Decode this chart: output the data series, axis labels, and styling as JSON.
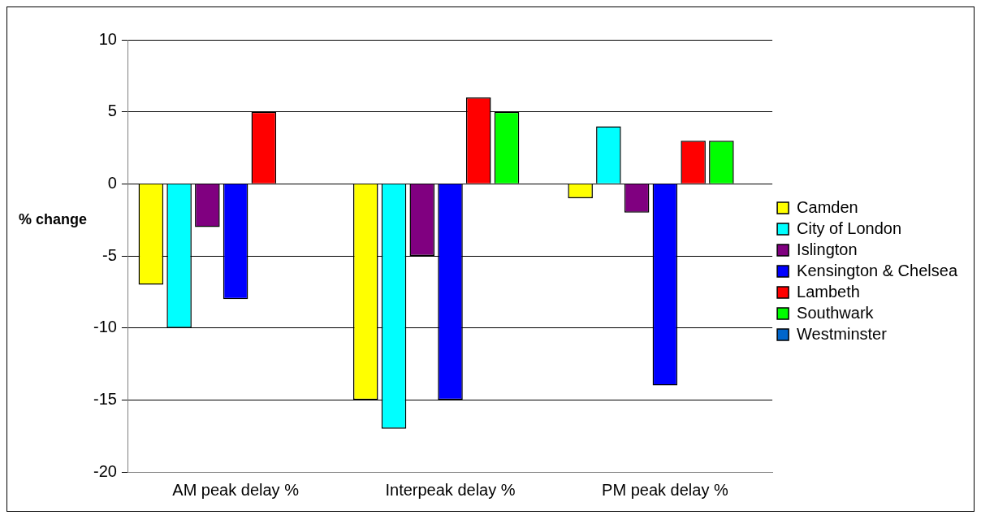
{
  "chart_data": {
    "type": "bar",
    "ylabel": "% change",
    "categories": [
      "AM peak delay %",
      "Interpeak delay %",
      "PM peak delay %"
    ],
    "series": [
      {
        "name": "Camden",
        "color": "#ffff00",
        "values": [
          -7,
          -15,
          -1
        ]
      },
      {
        "name": "City of London",
        "color": "#00ffff",
        "values": [
          -10,
          -17,
          4
        ]
      },
      {
        "name": "Islington",
        "color": "#800080",
        "values": [
          -3,
          -5,
          -2
        ]
      },
      {
        "name": "Kensington & Chelsea",
        "color": "#0000ff",
        "values": [
          -8,
          -15,
          -14
        ]
      },
      {
        "name": "Lambeth",
        "color": "#ff0000",
        "values": [
          5,
          6,
          3
        ]
      },
      {
        "name": "Southwark",
        "color": "#00ff00",
        "values": [
          null,
          5,
          3
        ]
      },
      {
        "name": "Westminster",
        "color": "#0066cc",
        "values": [
          null,
          null,
          null
        ]
      }
    ],
    "ylim": [
      -20,
      10
    ],
    "yticks": [
      -20,
      -15,
      -10,
      -5,
      0,
      5,
      10
    ],
    "grid": "y",
    "legend": "right"
  }
}
